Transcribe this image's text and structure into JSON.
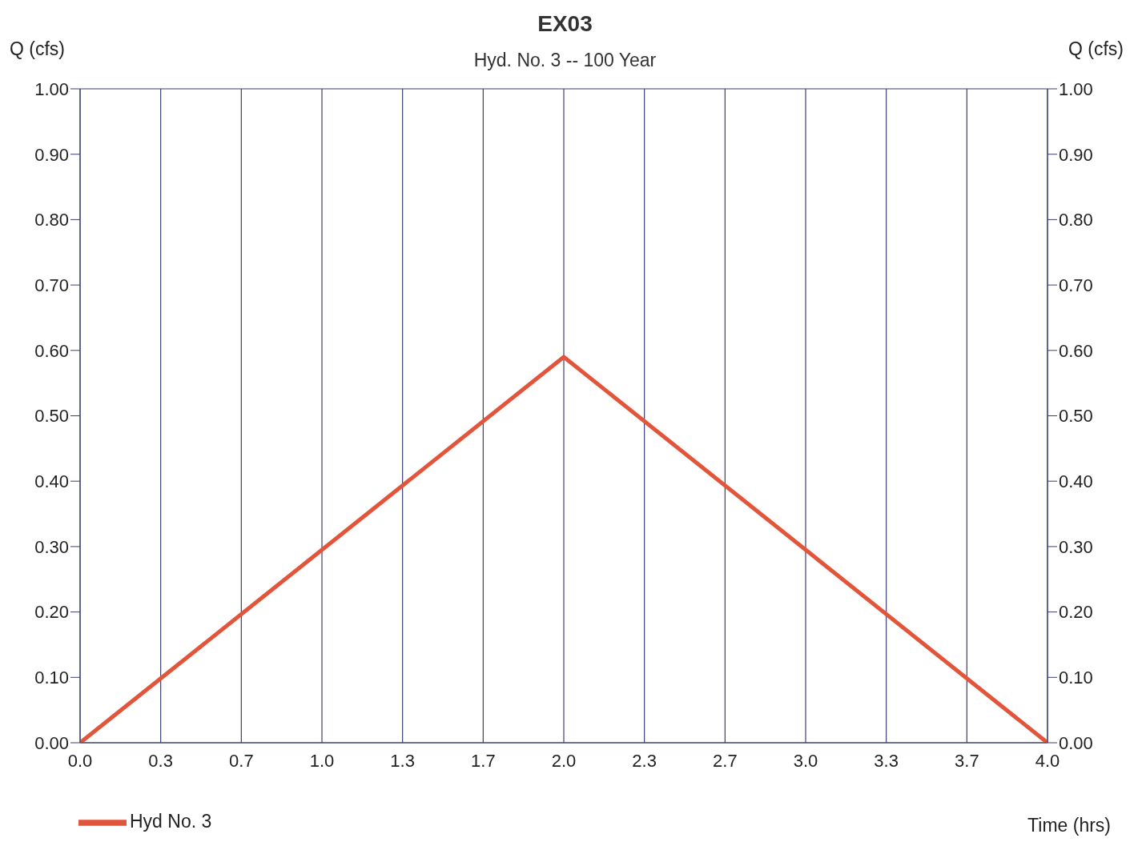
{
  "chart_data": {
    "type": "line",
    "title": "EX03",
    "subtitle": "Hyd. No. 3 -- 100 Year",
    "xlabel": "Time (hrs)",
    "ylabel": "Q (cfs)",
    "y2label": "Q (cfs)",
    "x": [
      0,
      2,
      4
    ],
    "series": [
      {
        "name": "Hyd No. 3",
        "color": "#e2553a",
        "values": [
          0,
          0.59,
          0
        ]
      }
    ],
    "xlim": [
      0,
      4
    ],
    "xticks": [
      {
        "value": 0,
        "label": "0.0"
      },
      {
        "value": 0.3333,
        "label": "0.3"
      },
      {
        "value": 0.6667,
        "label": "0.7"
      },
      {
        "value": 1,
        "label": "1.0"
      },
      {
        "value": 1.3333,
        "label": "1.3"
      },
      {
        "value": 1.6667,
        "label": "1.7"
      },
      {
        "value": 2,
        "label": "2.0"
      },
      {
        "value": 2.3333,
        "label": "2.3"
      },
      {
        "value": 2.6667,
        "label": "2.7"
      },
      {
        "value": 3,
        "label": "3.0"
      },
      {
        "value": 3.3333,
        "label": "3.3"
      },
      {
        "value": 3.6667,
        "label": "3.7"
      },
      {
        "value": 4,
        "label": "4.0"
      }
    ],
    "ylim": [
      0,
      1
    ],
    "yticks": [
      {
        "value": 0,
        "label": "0.00"
      },
      {
        "value": 0.1,
        "label": "0.10"
      },
      {
        "value": 0.2,
        "label": "0.20"
      },
      {
        "value": 0.3,
        "label": "0.30"
      },
      {
        "value": 0.4,
        "label": "0.40"
      },
      {
        "value": 0.5,
        "label": "0.50"
      },
      {
        "value": 0.6,
        "label": "0.60"
      },
      {
        "value": 0.7,
        "label": "0.70"
      },
      {
        "value": 0.8,
        "label": "0.80"
      },
      {
        "value": 0.9,
        "label": "0.90"
      },
      {
        "value": 1,
        "label": "1.00"
      }
    ],
    "y2lim": [
      0,
      1
    ],
    "y2ticks": [
      {
        "value": 0,
        "label": "0.00"
      },
      {
        "value": 0.1,
        "label": "0.10"
      },
      {
        "value": 0.2,
        "label": "0.20"
      },
      {
        "value": 0.3,
        "label": "0.30"
      },
      {
        "value": 0.4,
        "label": "0.40"
      },
      {
        "value": 0.5,
        "label": "0.50"
      },
      {
        "value": 0.6,
        "label": "0.60"
      },
      {
        "value": 0.7,
        "label": "0.70"
      },
      {
        "value": 0.8,
        "label": "0.80"
      },
      {
        "value": 0.9,
        "label": "0.90"
      },
      {
        "value": 1,
        "label": "1.00"
      }
    ],
    "grid": true,
    "legend": "bottom left"
  }
}
